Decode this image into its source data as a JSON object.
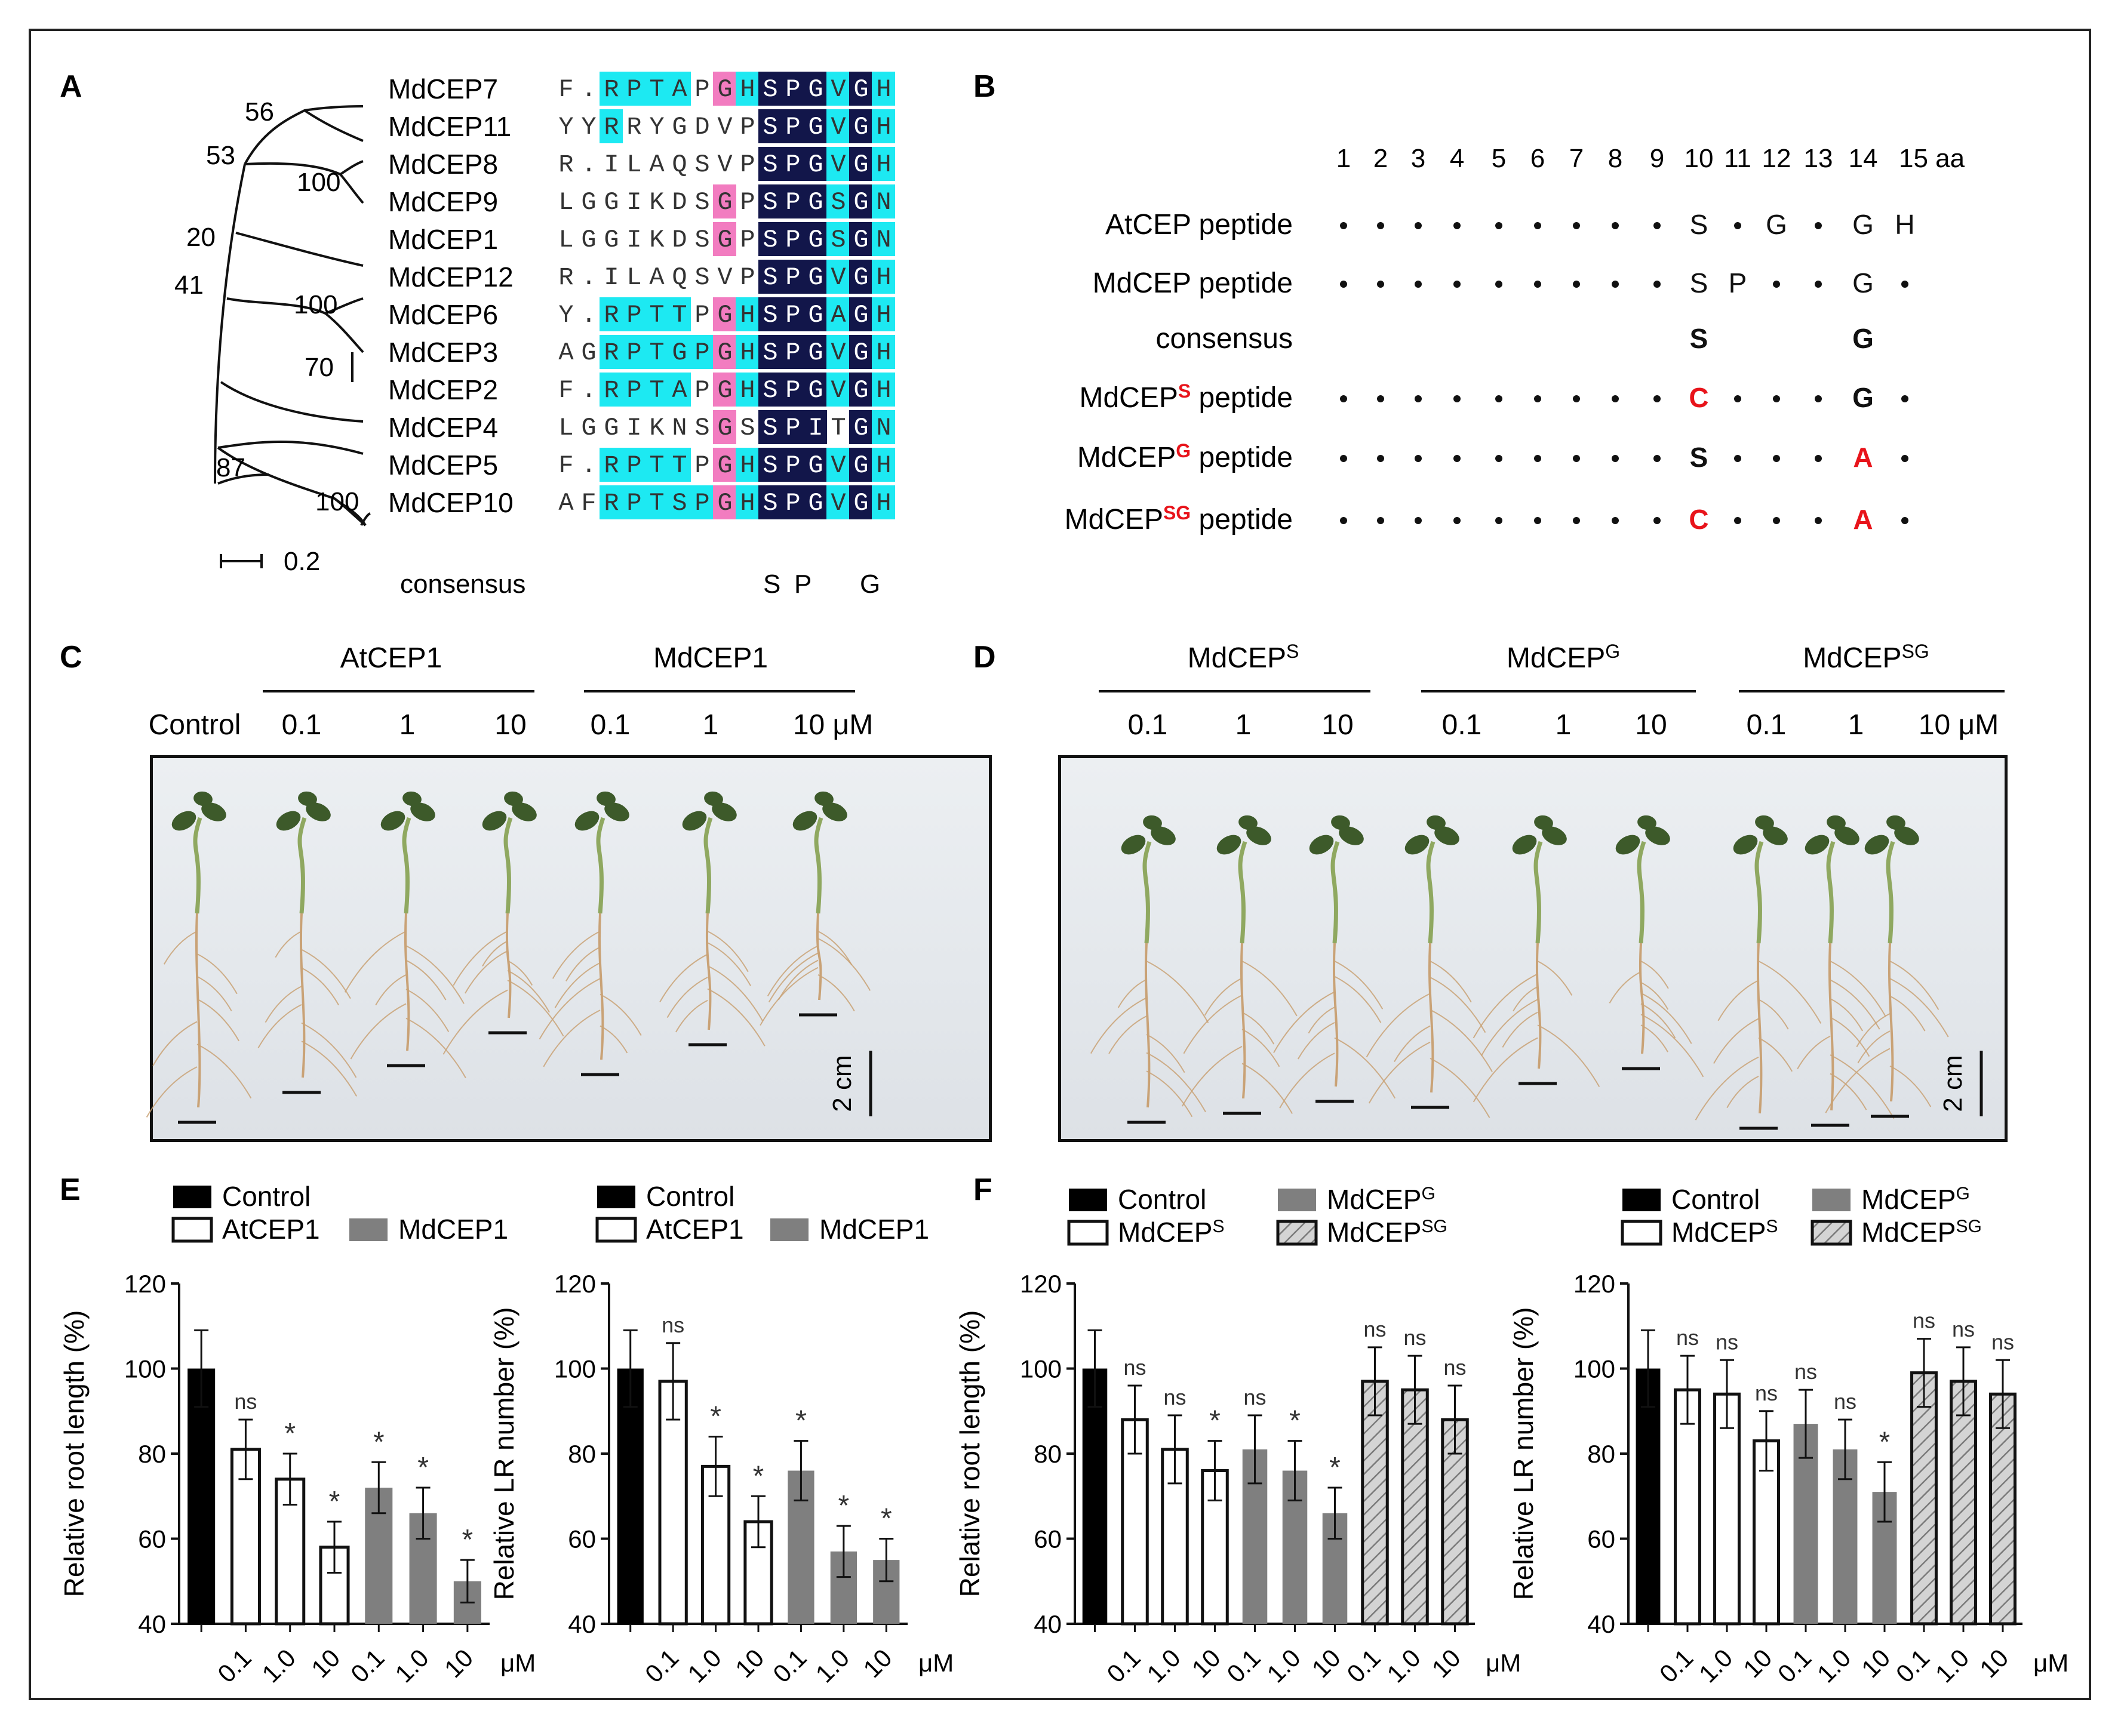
{
  "panels": {
    "A": {
      "letter": "A",
      "tree_bootstrap": [
        "56",
        "53",
        "100",
        "20",
        "41",
        "100",
        "70",
        "87",
        "100"
      ],
      "scale_bar_label": "0.2",
      "sequences": [
        {
          "name": "MdCEP7",
          "seq": "F.RPTAPGHSPGVGH"
        },
        {
          "name": "MdCEP11",
          "seq": "YYRRYGDVPSPGVGH"
        },
        {
          "name": "MdCEP8",
          "seq": "R.ILAQSVPSPGVGH"
        },
        {
          "name": "MdCEP9",
          "seq": "LGGIKDSGPSPGSGN"
        },
        {
          "name": "MdCEP1",
          "seq": "LGGIKDSGPSPGSGN"
        },
        {
          "name": "MdCEP12",
          "seq": "R.ILAQSVPSPGVGH"
        },
        {
          "name": "MdCEP6",
          "seq": "Y.RPTTPGHSPGAGH"
        },
        {
          "name": "MdCEP3",
          "seq": "AGRPTGPGHSPGVGH"
        },
        {
          "name": "MdCEP2",
          "seq": "F.RPTAPGHSPGVGH"
        },
        {
          "name": "MdCEP4",
          "seq": "LGGIKNSGSSPITGN"
        },
        {
          "name": "MdCEP5",
          "seq": "F.RPTTPGHSPGVGH"
        },
        {
          "name": "MdCEP10",
          "seq": "AFRPTSPGHSPGVGH"
        }
      ],
      "consensus_label": "consensus",
      "consensus_residues": [
        "S",
        "P",
        "G"
      ]
    },
    "B": {
      "letter": "B",
      "positions": [
        "1",
        "2",
        "3",
        "4",
        "5",
        "6",
        "7",
        "8",
        "9",
        "10",
        "11",
        "12",
        "13",
        "14",
        "15 aa"
      ],
      "rows": [
        {
          "label": "AtCEP peptide",
          "residues": [
            ".",
            ".",
            ".",
            ".",
            ".",
            ".",
            ".",
            ".",
            ".",
            "S",
            ".",
            "G",
            ".",
            "G",
            "H"
          ]
        },
        {
          "label": "MdCEP peptide",
          "residues": [
            ".",
            ".",
            ".",
            ".",
            ".",
            ".",
            ".",
            ".",
            ".",
            "S",
            "P",
            ".",
            ".",
            "G",
            "."
          ]
        },
        {
          "label": "consensus",
          "residues": [
            "",
            "",
            "",
            "",
            "",
            "",
            "",
            "",
            "",
            "S",
            "",
            "",
            "",
            "G",
            ""
          ]
        },
        {
          "label_main": "MdCEP",
          "label_sup": "S",
          "label_tail": " peptide",
          "residues": [
            ".",
            ".",
            ".",
            ".",
            ".",
            ".",
            ".",
            ".",
            ".",
            "C",
            ".",
            ".",
            ".",
            "G",
            "."
          ]
        },
        {
          "label_main": "MdCEP",
          "label_sup": "G",
          "label_tail": " peptide",
          "residues": [
            ".",
            ".",
            ".",
            ".",
            ".",
            ".",
            ".",
            ".",
            ".",
            "S",
            ".",
            ".",
            ".",
            "A",
            "."
          ]
        },
        {
          "label_main": "MdCEP",
          "label_sup": "SG",
          "label_tail": " peptide",
          "residues": [
            ".",
            ".",
            ".",
            ".",
            ".",
            ".",
            ".",
            ".",
            ".",
            "C",
            ".",
            ".",
            ".",
            "A",
            "."
          ]
        }
      ],
      "mutation_color": "#e8141b"
    },
    "C": {
      "letter": "C",
      "group_labels": [
        "AtCEP1",
        "MdCEP1"
      ],
      "conc_labels": [
        "Control",
        "0.1",
        "1",
        "10",
        "0.1",
        "1",
        "10 μM"
      ],
      "scale_label": "2 cm"
    },
    "D": {
      "letter": "D",
      "group_labels": [
        {
          "main": "MdCEP",
          "sup": "S"
        },
        {
          "main": "MdCEP",
          "sup": "G"
        },
        {
          "main": "MdCEP",
          "sup": "SG"
        }
      ],
      "conc_labels": [
        "0.1",
        "1",
        "10",
        "0.1",
        "1",
        "10",
        "0.1",
        "1",
        "10 μM"
      ],
      "scale_label": "2 cm"
    },
    "E": {
      "letter": "E"
    },
    "F": {
      "letter": "F"
    }
  },
  "colors": {
    "cyan": "#1de9f2",
    "pink": "#f27cc0",
    "navy": "#12164a",
    "bar_black": "#000000",
    "bar_gray": "#7f7f7f",
    "hatch_gray": "#bdbdbd"
  },
  "chart_data": [
    {
      "panel": "E-left",
      "type": "bar",
      "ylabel": "Relative root length (%)",
      "ylim": [
        40,
        120
      ],
      "yticks": [
        40,
        60,
        80,
        100,
        120
      ],
      "categories": [
        "",
        "0.1",
        "1.0",
        "10",
        "0.1",
        "1.0",
        "10"
      ],
      "unit_label": "μM",
      "legend": [
        "Control",
        "AtCEP1",
        "MdCEP1"
      ],
      "bars": [
        {
          "group": "Control",
          "value": 100,
          "err": 9,
          "sig": ""
        },
        {
          "group": "AtCEP1",
          "value": 81,
          "err": 7,
          "sig": "ns"
        },
        {
          "group": "AtCEP1",
          "value": 74,
          "err": 6,
          "sig": "*"
        },
        {
          "group": "AtCEP1",
          "value": 58,
          "err": 6,
          "sig": "*"
        },
        {
          "group": "MdCEP1",
          "value": 72,
          "err": 6,
          "sig": "*"
        },
        {
          "group": "MdCEP1",
          "value": 66,
          "err": 6,
          "sig": "*"
        },
        {
          "group": "MdCEP1",
          "value": 50,
          "err": 5,
          "sig": "*"
        }
      ]
    },
    {
      "panel": "E-right",
      "type": "bar",
      "ylabel": "Relative LR number (%)",
      "ylim": [
        40,
        120
      ],
      "yticks": [
        40,
        60,
        80,
        100,
        120
      ],
      "categories": [
        "",
        "0.1",
        "1.0",
        "10",
        "0.1",
        "1.0",
        "10"
      ],
      "unit_label": "μM",
      "legend": [
        "Control",
        "AtCEP1",
        "MdCEP1"
      ],
      "bars": [
        {
          "group": "Control",
          "value": 100,
          "err": 9,
          "sig": ""
        },
        {
          "group": "AtCEP1",
          "value": 97,
          "err": 9,
          "sig": "ns"
        },
        {
          "group": "AtCEP1",
          "value": 77,
          "err": 7,
          "sig": "*"
        },
        {
          "group": "AtCEP1",
          "value": 64,
          "err": 6,
          "sig": "*"
        },
        {
          "group": "MdCEP1",
          "value": 76,
          "err": 7,
          "sig": "*"
        },
        {
          "group": "MdCEP1",
          "value": 57,
          "err": 6,
          "sig": "*"
        },
        {
          "group": "MdCEP1",
          "value": 55,
          "err": 5,
          "sig": "*"
        }
      ]
    },
    {
      "panel": "F-left",
      "type": "bar",
      "ylabel": "Relative root length (%)",
      "ylim": [
        40,
        120
      ],
      "yticks": [
        40,
        60,
        80,
        100,
        120
      ],
      "categories": [
        "",
        "0.1",
        "1.0",
        "10",
        "0.1",
        "1.0",
        "10",
        "0.1",
        "1.0",
        "10"
      ],
      "unit_label": "μM",
      "legend": [
        "Control",
        "MdCEP^S",
        "MdCEP^G",
        "MdCEP^SG"
      ],
      "bars": [
        {
          "group": "Control",
          "value": 100,
          "err": 9,
          "sig": ""
        },
        {
          "group": "MdCEPS",
          "value": 88,
          "err": 8,
          "sig": "ns"
        },
        {
          "group": "MdCEPS",
          "value": 81,
          "err": 8,
          "sig": "ns"
        },
        {
          "group": "MdCEPS",
          "value": 76,
          "err": 7,
          "sig": "*"
        },
        {
          "group": "MdCEPG",
          "value": 81,
          "err": 8,
          "sig": "ns"
        },
        {
          "group": "MdCEPG",
          "value": 76,
          "err": 7,
          "sig": "*"
        },
        {
          "group": "MdCEPG",
          "value": 66,
          "err": 6,
          "sig": "*"
        },
        {
          "group": "MdCEPSG",
          "value": 97,
          "err": 8,
          "sig": "ns"
        },
        {
          "group": "MdCEPSG",
          "value": 95,
          "err": 8,
          "sig": "ns"
        },
        {
          "group": "MdCEPSG",
          "value": 88,
          "err": 8,
          "sig": "ns"
        }
      ]
    },
    {
      "panel": "F-right",
      "type": "bar",
      "ylabel": "Relative LR number (%)",
      "ylim": [
        40,
        120
      ],
      "yticks": [
        40,
        60,
        80,
        100,
        120
      ],
      "categories": [
        "",
        "0.1",
        "1.0",
        "10",
        "0.1",
        "1.0",
        "10",
        "0.1",
        "1.0",
        "10"
      ],
      "unit_label": "μM",
      "legend": [
        "Control",
        "MdCEP^S",
        "MdCEP^G",
        "MdCEP^SG"
      ],
      "bars": [
        {
          "group": "Control",
          "value": 100,
          "err": 9,
          "sig": ""
        },
        {
          "group": "MdCEPS",
          "value": 95,
          "err": 8,
          "sig": "ns"
        },
        {
          "group": "MdCEPS",
          "value": 94,
          "err": 8,
          "sig": "ns"
        },
        {
          "group": "MdCEPS",
          "value": 83,
          "err": 7,
          "sig": "ns"
        },
        {
          "group": "MdCEPG",
          "value": 87,
          "err": 8,
          "sig": "ns"
        },
        {
          "group": "MdCEPG",
          "value": 81,
          "err": 7,
          "sig": "ns"
        },
        {
          "group": "MdCEPG",
          "value": 71,
          "err": 7,
          "sig": "*"
        },
        {
          "group": "MdCEPSG",
          "value": 99,
          "err": 8,
          "sig": "ns"
        },
        {
          "group": "MdCEPSG",
          "value": 97,
          "err": 8,
          "sig": "ns"
        },
        {
          "group": "MdCEPSG",
          "value": 94,
          "err": 8,
          "sig": "ns"
        }
      ]
    }
  ]
}
